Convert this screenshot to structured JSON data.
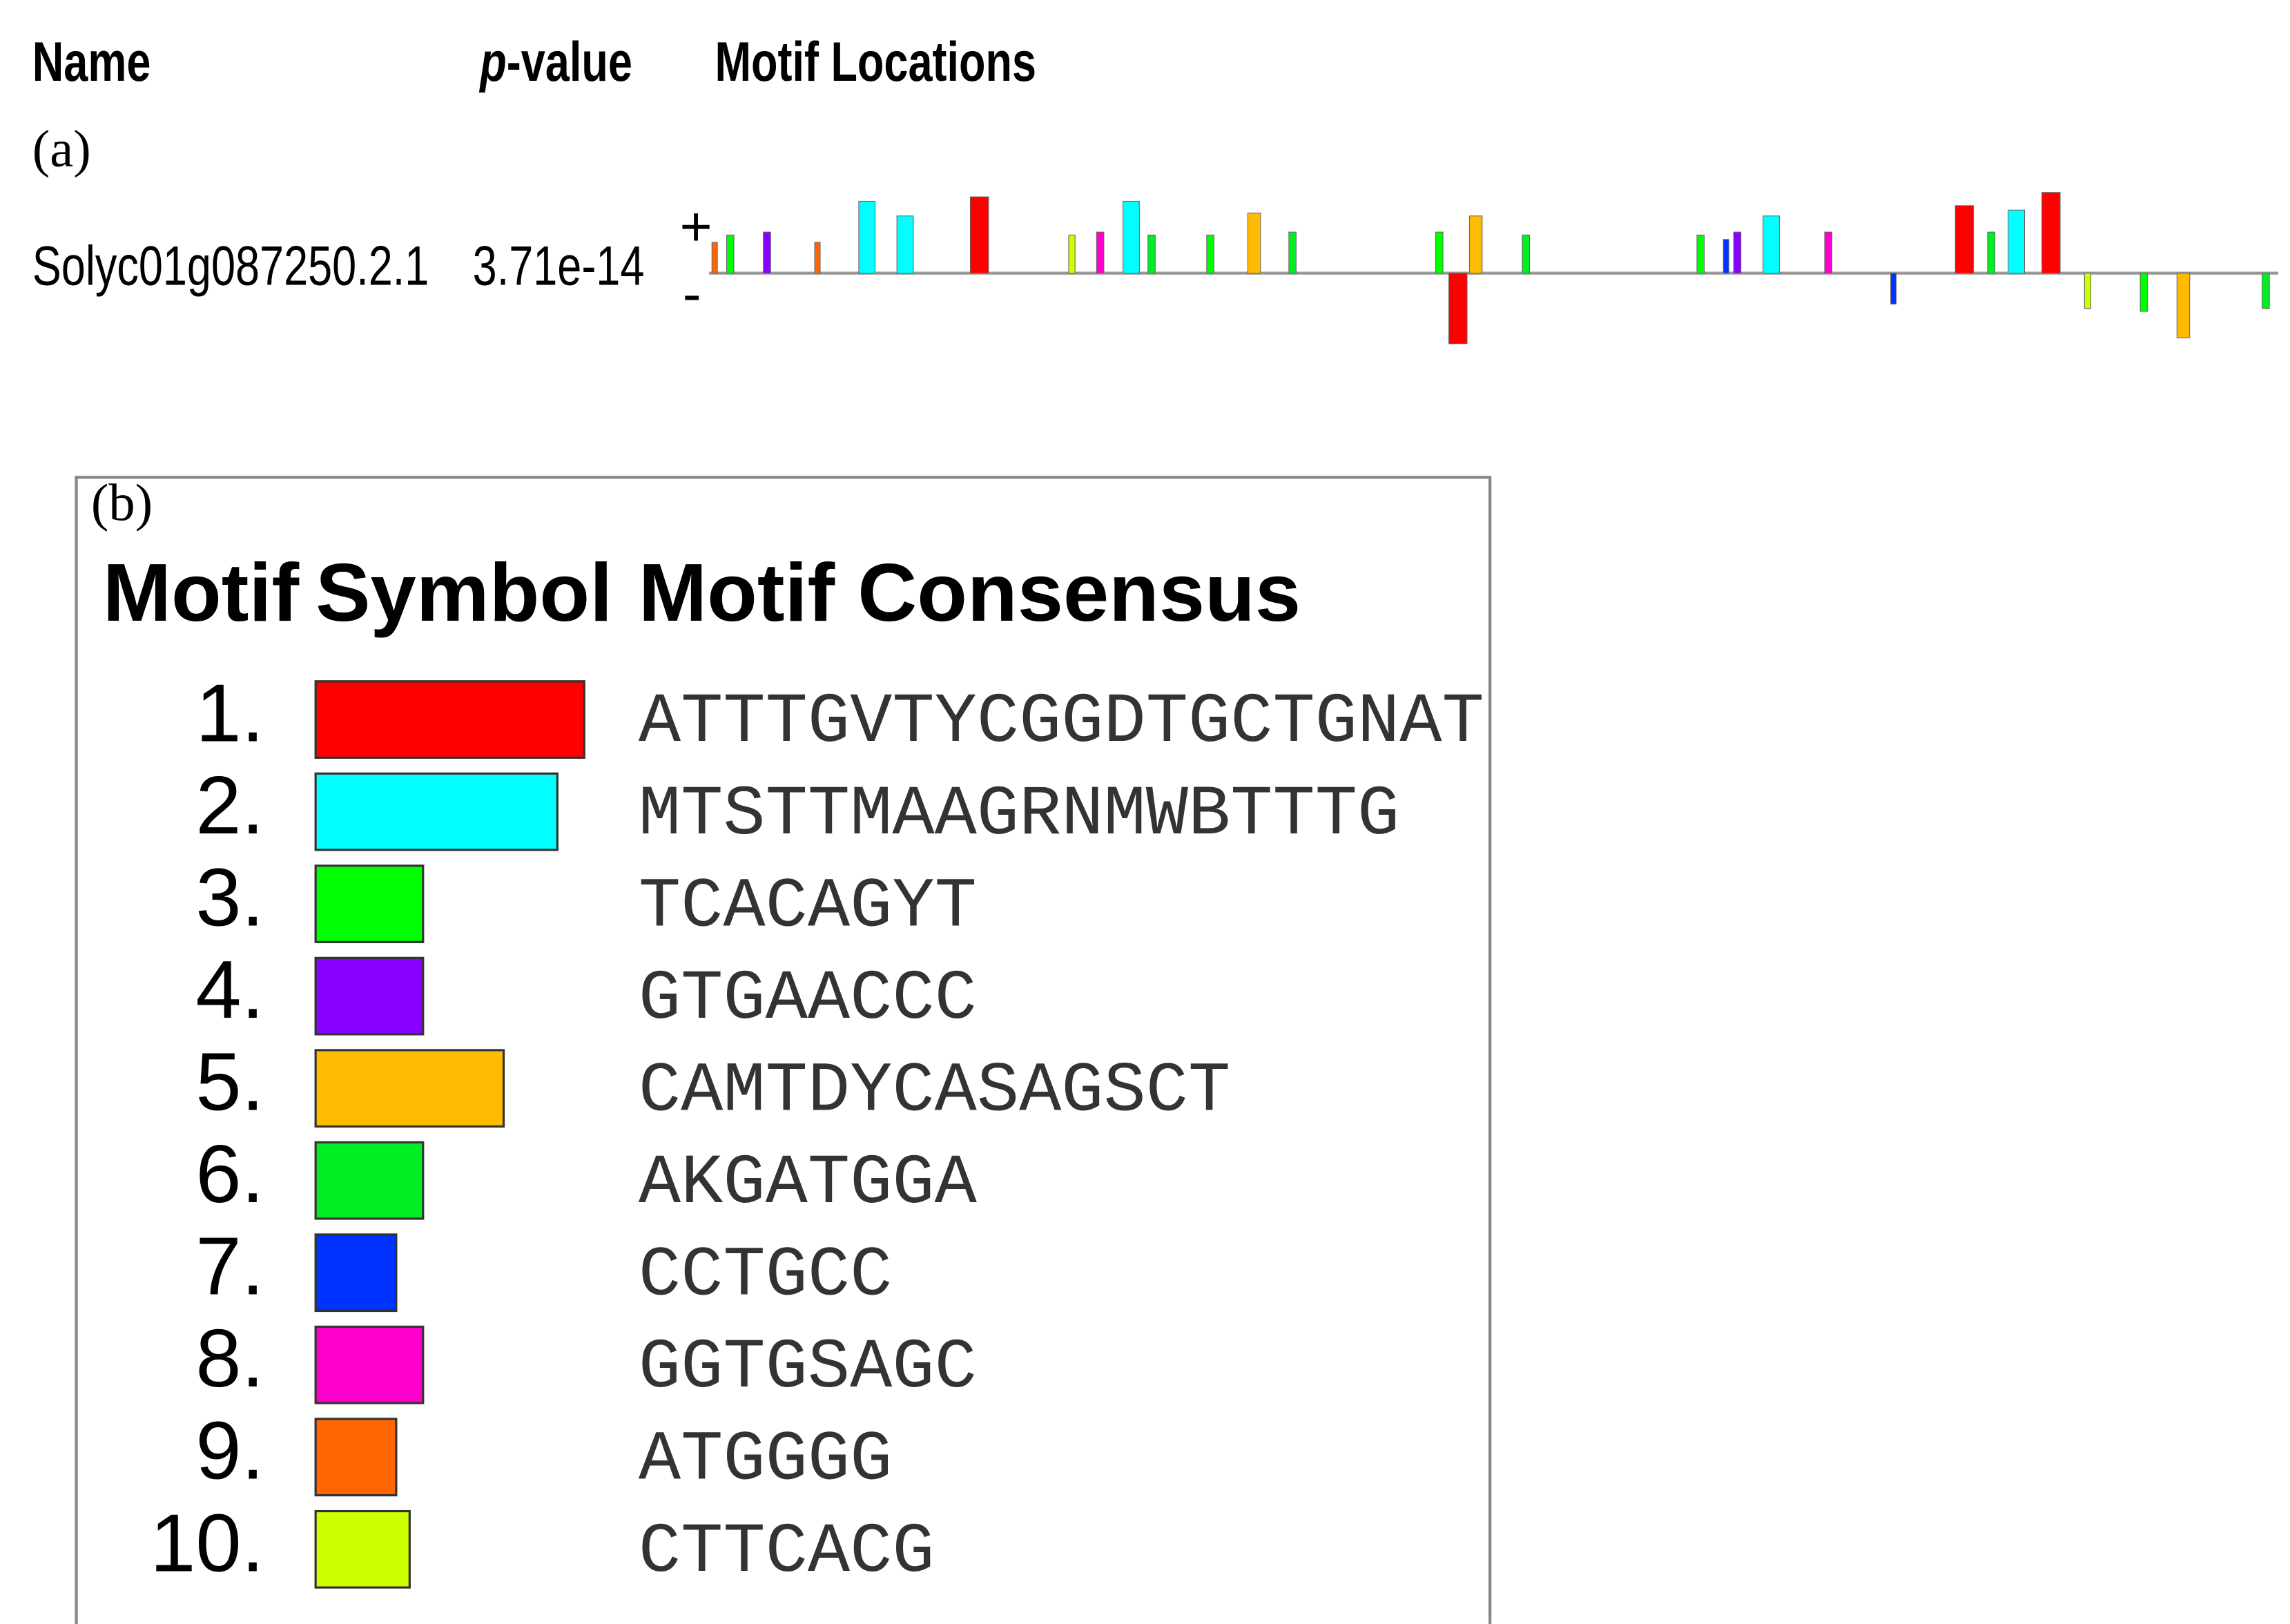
{
  "header": {
    "name": "Name",
    "pvalue_italic": "p",
    "pvalue_rest": "-value",
    "locations": "Motif Locations"
  },
  "panel_a": {
    "label": "(a)",
    "sequence": "Solyc01g087250.2.1",
    "pvalue": "3.71e-14",
    "plus": "+",
    "minus": "-"
  },
  "panel_b": {
    "label": "(b)",
    "headers": [
      "Motif",
      "Symbol",
      "Motif Consensus"
    ],
    "motifs": [
      {
        "number": "1.",
        "color": "#ff0000",
        "consensus": "ATTTGVTYCGGDTGCTGNAT"
      },
      {
        "number": "2.",
        "color": "#00ffff",
        "consensus": "MTSTTMAAGRNMWBTTTG"
      },
      {
        "number": "3.",
        "color": "#00ff00",
        "consensus": "TCACAGYT"
      },
      {
        "number": "4.",
        "color": "#8800ff",
        "consensus": "GTGAACCC"
      },
      {
        "number": "5.",
        "color": "#ffbb00",
        "consensus": "CAMTDYCASAGSCT"
      },
      {
        "number": "6.",
        "color": "#00ee22",
        "consensus": "AKGATGGA"
      },
      {
        "number": "7.",
        "color": "#0033ff",
        "consensus": "CCTGCC"
      },
      {
        "number": "8.",
        "color": "#ff00cc",
        "consensus": "GGTGSAGC"
      },
      {
        "number": "9.",
        "color": "#ff6600",
        "consensus": "ATGGGG"
      },
      {
        "number": "10.",
        "color": "#ccff00",
        "consensus": "CTTCACG"
      }
    ]
  }
}
